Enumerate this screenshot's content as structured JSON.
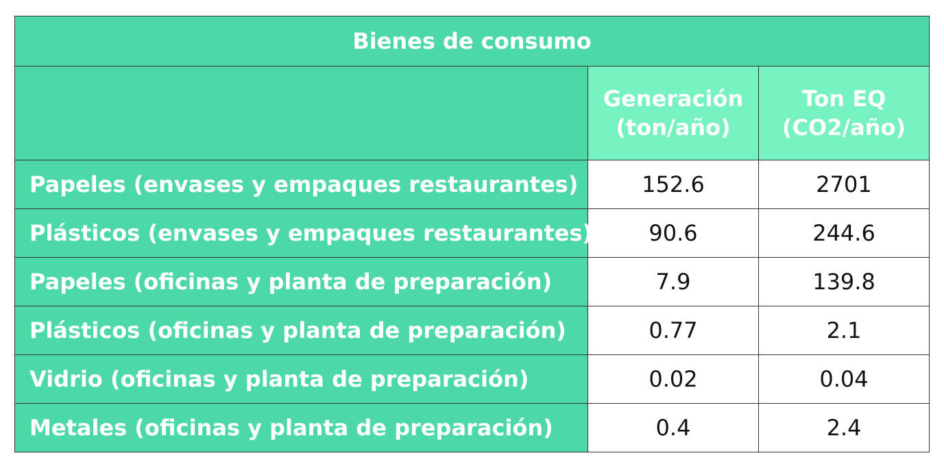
{
  "table": {
    "title": "Bienes de consumo",
    "columns": [
      {
        "line1": "Generación",
        "line2": "(ton/año)"
      },
      {
        "line1": "Ton EQ",
        "line2": "(CO2/año)"
      }
    ],
    "rows": [
      {
        "label": "Papeles (envases y empaques restaurantes)",
        "generation": "152.6",
        "ton_eq": "2701"
      },
      {
        "label": "Plásticos (envases y empaques restaurantes)",
        "generation": "90.6",
        "ton_eq": "244.6"
      },
      {
        "label": "Papeles (oficinas y planta de preparación)",
        "generation": "7.9",
        "ton_eq": "139.8"
      },
      {
        "label": "Plásticos (oficinas y planta de preparación)",
        "generation": "0.77",
        "ton_eq": "2.1"
      },
      {
        "label": "Vidrio (oficinas y planta de preparación)",
        "generation": "0.02",
        "ton_eq": "0.04"
      },
      {
        "label": "Metales (oficinas y planta de preparación)",
        "generation": "0.4",
        "ton_eq": "2.4"
      }
    ],
    "colors": {
      "header_green": "#4dd9a6",
      "subheader_green": "#76f2c0",
      "value_bg": "#ffffff"
    }
  }
}
